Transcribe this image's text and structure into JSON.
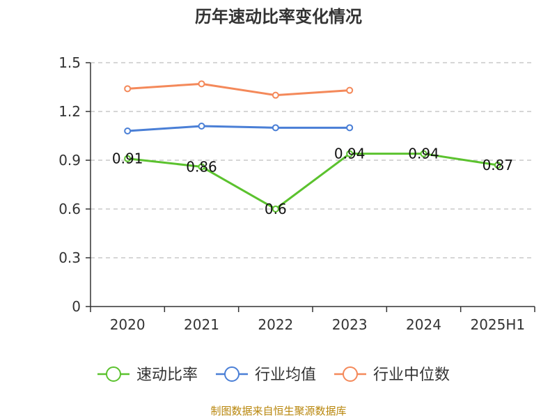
{
  "chart_data": {
    "type": "line",
    "title": "历年速动比率变化情况",
    "categories": [
      "2020",
      "2021",
      "2022",
      "2023",
      "2024",
      "2025H1"
    ],
    "ylim": [
      0,
      1.5
    ],
    "yticks": [
      "0",
      "0.3",
      "0.6",
      "0.9",
      "1.2",
      "1.5"
    ],
    "grid": true,
    "legend_position": "bottom",
    "series": [
      {
        "name": "速动比率",
        "color": "#5bc22e",
        "values": [
          0.91,
          0.86,
          0.6,
          0.94,
          0.94,
          0.87
        ],
        "labels": [
          "0.91",
          "0.86",
          "0.6",
          "0.94",
          "0.94",
          "0.87"
        ]
      },
      {
        "name": "行业均值",
        "color": "#4a7fd6",
        "values": [
          1.08,
          1.11,
          1.1,
          1.1,
          null,
          null
        ]
      },
      {
        "name": "行业中位数",
        "color": "#f4895a",
        "values": [
          1.34,
          1.37,
          1.3,
          1.33,
          null,
          null
        ]
      }
    ]
  },
  "source": "制图数据来自恒生聚源数据库"
}
